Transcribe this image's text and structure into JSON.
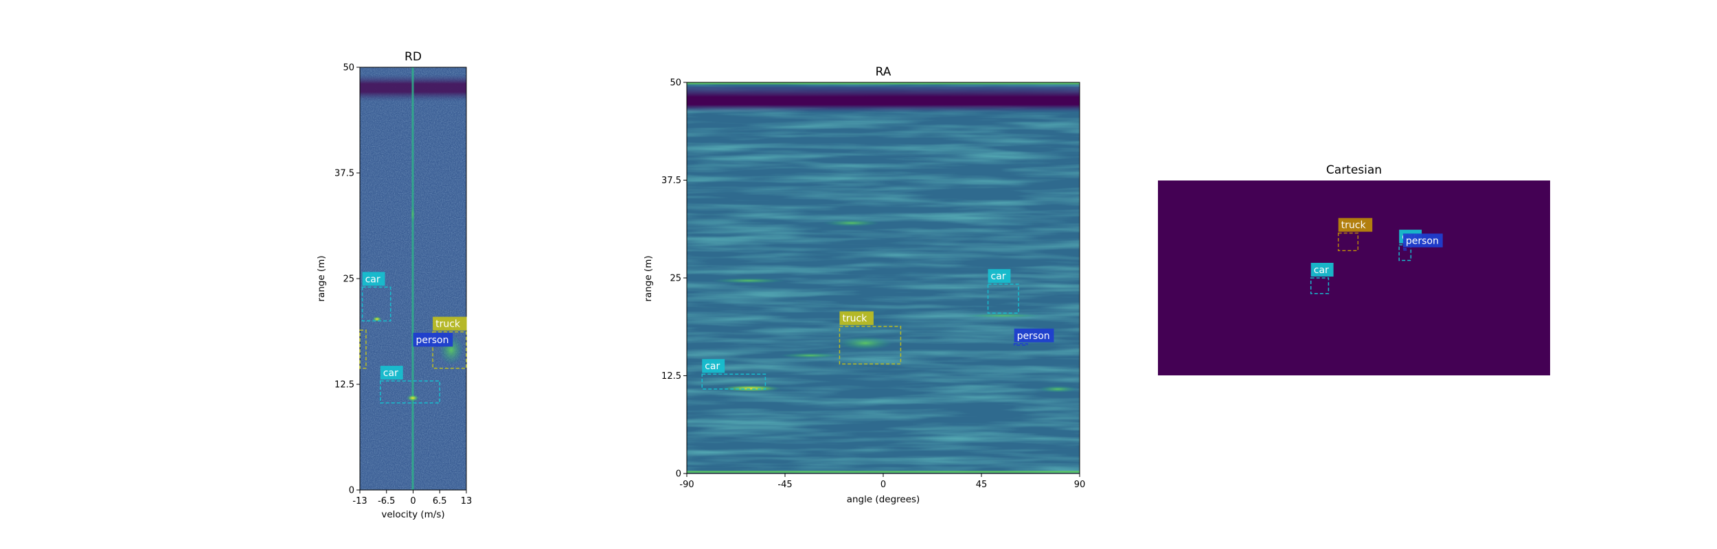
{
  "colors": {
    "viridis_dark": "#440154",
    "car": "#17becf",
    "truck": "#bcbd22",
    "truck_cart": "#b8860b",
    "person": "#1f3ecf"
  },
  "chart_data": [
    {
      "type": "heatmap",
      "title": "RD",
      "xlabel": "velocity (m/s)",
      "ylabel": "range (m)",
      "xlim": [
        -13,
        13
      ],
      "ylim": [
        0,
        50
      ],
      "xticks": [
        "-13",
        "-6.5",
        "0",
        "6.5",
        "13"
      ],
      "xtick_values": [
        -13,
        -6.5,
        0,
        6.5,
        13
      ],
      "yticks": [
        "0",
        "12.5",
        "25",
        "37.5",
        "50"
      ],
      "ytick_values": [
        0,
        12.5,
        25,
        37.5,
        50
      ],
      "annotations": [
        {
          "label": "car",
          "class": "car",
          "x0": -12.4,
          "x1": -5.5,
          "y0": 20.0,
          "y1": 24.0
        },
        {
          "label": "car",
          "class": "car",
          "x0": -8.0,
          "x1": 6.5,
          "y0": 10.3,
          "y1": 12.9
        },
        {
          "label": "truck",
          "class": "truck",
          "x0": 4.8,
          "x1": 13.0,
          "y0": 14.4,
          "y1": 18.7
        },
        {
          "label": "person",
          "class": "person",
          "x0": 0.0,
          "x1": 0.0,
          "y0": 16.8,
          "y1": 16.8
        }
      ],
      "extra_boxes": [
        {
          "class": "truck",
          "x0": -13.0,
          "x1": -11.5,
          "y0": 14.4,
          "y1": 18.9
        }
      ]
    },
    {
      "type": "heatmap",
      "title": "RA",
      "xlabel": "angle (degrees)",
      "ylabel": "range (m)",
      "xlim": [
        -90,
        90
      ],
      "ylim": [
        0,
        50
      ],
      "xticks": [
        "-90",
        "-45",
        "0",
        "45",
        "90"
      ],
      "xtick_values": [
        -90,
        -45,
        0,
        45,
        90
      ],
      "yticks": [
        "0",
        "12.5",
        "25",
        "37.5",
        "50"
      ],
      "ytick_values": [
        0,
        12.5,
        25,
        37.5,
        50
      ],
      "annotations": [
        {
          "label": "car",
          "class": "car",
          "x0": -83,
          "x1": -54,
          "y0": 10.8,
          "y1": 12.7
        },
        {
          "label": "truck",
          "class": "truck",
          "x0": -20,
          "x1": 8,
          "y0": 14.0,
          "y1": 18.8
        },
        {
          "label": "car",
          "class": "car",
          "x0": 48,
          "x1": 62,
          "y0": 20.5,
          "y1": 24.2
        },
        {
          "label": "person",
          "class": "person",
          "x0": 60,
          "x1": 66,
          "y0": 16.4,
          "y1": 16.6
        }
      ]
    },
    {
      "type": "heatmap",
      "title": "Cartesian",
      "annotations": [
        {
          "label": "truck",
          "class": "truck_cart",
          "x0": 0.46,
          "x1": 0.51,
          "y0": 0.27,
          "y1": 0.36
        },
        {
          "label": "car",
          "class": "car",
          "x0": 0.615,
          "x1": 0.645,
          "y0": 0.33,
          "y1": 0.41
        },
        {
          "label": "person",
          "class": "person",
          "x0": 0.625,
          "x1": 0.635,
          "y0": 0.35,
          "y1": 0.355
        },
        {
          "label": "car",
          "class": "car",
          "x0": 0.39,
          "x1": 0.435,
          "y0": 0.5,
          "y1": 0.58
        }
      ]
    }
  ]
}
